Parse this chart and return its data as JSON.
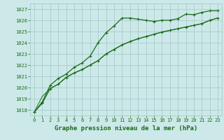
{
  "xlabel": "Graphe pression niveau de la mer (hPa)",
  "ylim": [
    1017.5,
    1027.5
  ],
  "xlim": [
    -0.5,
    23.5
  ],
  "yticks": [
    1018,
    1019,
    1020,
    1021,
    1022,
    1023,
    1024,
    1025,
    1026,
    1027
  ],
  "xticks": [
    0,
    1,
    2,
    3,
    4,
    5,
    6,
    7,
    8,
    9,
    10,
    11,
    12,
    13,
    14,
    15,
    16,
    17,
    18,
    19,
    20,
    21,
    22,
    23
  ],
  "bg_color": "#cce8e8",
  "grid_color": "#aacccc",
  "line_color": "#1a6b1a",
  "label_color": "#1a6b1a",
  "series1_x": [
    0,
    1,
    2,
    3,
    4,
    5,
    6,
    7,
    8,
    9,
    10,
    11,
    12,
    13,
    14,
    15,
    16,
    17,
    18,
    19,
    20,
    21,
    22,
    23
  ],
  "series1_y": [
    1017.8,
    1018.7,
    1020.2,
    1020.8,
    1021.2,
    1021.8,
    1022.2,
    1022.8,
    1024.0,
    1024.9,
    1025.5,
    1026.2,
    1026.2,
    1026.1,
    1026.0,
    1025.9,
    1026.0,
    1026.0,
    1026.15,
    1026.55,
    1026.5,
    1026.7,
    1026.85,
    1026.85
  ],
  "series2_x": [
    0,
    1,
    2,
    3,
    4,
    5,
    6,
    7,
    8,
    9,
    10,
    11,
    12,
    13,
    14,
    15,
    16,
    17,
    18,
    19,
    20,
    21,
    22,
    23
  ],
  "series2_y": [
    1017.8,
    1018.6,
    1019.9,
    1020.3,
    1020.9,
    1021.3,
    1021.6,
    1022.0,
    1022.4,
    1023.0,
    1023.4,
    1023.8,
    1024.1,
    1024.35,
    1024.55,
    1024.75,
    1024.95,
    1025.1,
    1025.25,
    1025.4,
    1025.55,
    1025.7,
    1026.0,
    1026.2
  ],
  "series3_x": [
    0,
    1,
    2,
    3,
    4,
    5,
    6,
    7,
    8,
    9,
    10,
    11,
    12,
    13,
    14,
    15,
    16,
    17,
    18,
    19,
    20,
    21,
    22,
    23
  ],
  "series3_y": [
    1017.8,
    1019.2,
    1019.9,
    1020.3,
    1020.9,
    1021.3,
    1021.6,
    1022.0,
    1022.4,
    1023.0,
    1023.4,
    1023.8,
    1024.1,
    1024.35,
    1024.55,
    1024.75,
    1024.95,
    1025.1,
    1025.25,
    1025.4,
    1025.55,
    1025.7,
    1026.0,
    1026.2
  ]
}
